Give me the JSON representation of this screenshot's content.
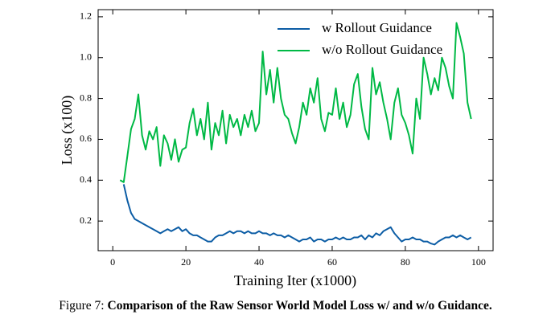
{
  "chart_data": {
    "type": "line",
    "xlabel": "Training Iter (x1000)",
    "ylabel": "Loss (x100)",
    "xlim": [
      -4,
      104
    ],
    "xticks": [
      0,
      20,
      40,
      60,
      80,
      100
    ],
    "ylim": [
      0.055,
      1.235
    ],
    "yticks": [
      0.2,
      0.4,
      0.6,
      0.8,
      {
        "value": 1.0,
        "label": "1.0"
      },
      1.2
    ],
    "legend": "upper right",
    "x": [
      2,
      3,
      4,
      5,
      6,
      7,
      8,
      9,
      10,
      11,
      12,
      13,
      14,
      15,
      16,
      17,
      18,
      19,
      20,
      21,
      22,
      23,
      24,
      25,
      26,
      27,
      28,
      29,
      30,
      31,
      32,
      33,
      34,
      35,
      36,
      37,
      38,
      39,
      40,
      41,
      42,
      43,
      44,
      45,
      46,
      47,
      48,
      49,
      50,
      51,
      52,
      53,
      54,
      55,
      56,
      57,
      58,
      59,
      60,
      61,
      62,
      63,
      64,
      65,
      66,
      67,
      68,
      69,
      70,
      71,
      72,
      73,
      74,
      75,
      76,
      77,
      78,
      79,
      80,
      81,
      82,
      83,
      84,
      85,
      86,
      87,
      88,
      89,
      90,
      91,
      92,
      93,
      94,
      95,
      96,
      97,
      98
    ],
    "series": [
      {
        "name": "w Rollout Guidance",
        "color": "#0C5DA5",
        "values": [
          null,
          0.38,
          0.3,
          0.24,
          0.21,
          0.2,
          0.19,
          0.18,
          0.17,
          0.16,
          0.15,
          0.14,
          0.15,
          0.16,
          0.15,
          0.16,
          0.17,
          0.15,
          0.16,
          0.14,
          0.13,
          0.13,
          0.12,
          0.11,
          0.1,
          0.1,
          0.12,
          0.13,
          0.13,
          0.14,
          0.15,
          0.14,
          0.15,
          0.15,
          0.14,
          0.15,
          0.14,
          0.14,
          0.15,
          0.14,
          0.14,
          0.13,
          0.14,
          0.13,
          0.13,
          0.12,
          0.13,
          0.12,
          0.11,
          0.1,
          0.11,
          0.11,
          0.12,
          0.1,
          0.11,
          0.11,
          0.1,
          0.11,
          0.11,
          0.12,
          0.11,
          0.12,
          0.11,
          0.11,
          0.12,
          0.12,
          0.13,
          0.11,
          0.13,
          0.12,
          0.14,
          0.13,
          0.15,
          0.16,
          0.17,
          0.14,
          0.12,
          0.1,
          0.11,
          0.11,
          0.12,
          0.11,
          0.11,
          0.1,
          0.1,
          0.09,
          0.085,
          0.1,
          0.11,
          0.12,
          0.12,
          0.13,
          0.12,
          0.13,
          0.12,
          0.11,
          0.12
        ]
      },
      {
        "name": "w/o Rollout Guidance",
        "color": "#00B945",
        "values": [
          0.4,
          0.39,
          0.52,
          0.65,
          0.7,
          0.82,
          0.62,
          0.55,
          0.64,
          0.6,
          0.66,
          0.47,
          0.62,
          0.58,
          0.5,
          0.6,
          0.49,
          0.55,
          0.56,
          0.68,
          0.75,
          0.62,
          0.7,
          0.6,
          0.78,
          0.55,
          0.68,
          0.62,
          0.74,
          0.58,
          0.72,
          0.66,
          0.7,
          0.62,
          0.72,
          0.66,
          0.74,
          0.64,
          0.68,
          1.03,
          0.82,
          0.94,
          0.78,
          0.95,
          0.8,
          0.72,
          0.7,
          0.63,
          0.58,
          0.66,
          0.78,
          0.72,
          0.85,
          0.78,
          0.9,
          0.7,
          0.64,
          0.73,
          0.72,
          0.85,
          0.7,
          0.78,
          0.66,
          0.72,
          0.87,
          0.92,
          0.76,
          0.65,
          0.6,
          0.95,
          0.82,
          0.88,
          0.78,
          0.7,
          0.6,
          0.78,
          0.85,
          0.72,
          0.68,
          0.62,
          0.53,
          0.8,
          0.7,
          1.0,
          0.92,
          0.82,
          0.9,
          0.84,
          1.0,
          0.95,
          0.86,
          0.8,
          1.17,
          1.1,
          1.02,
          0.78,
          0.7
        ]
      }
    ]
  },
  "caption": {
    "label": "Figure 7:",
    "text": "Comparison of the Raw Sensor World Model Loss w/ and w/o Guidance."
  }
}
